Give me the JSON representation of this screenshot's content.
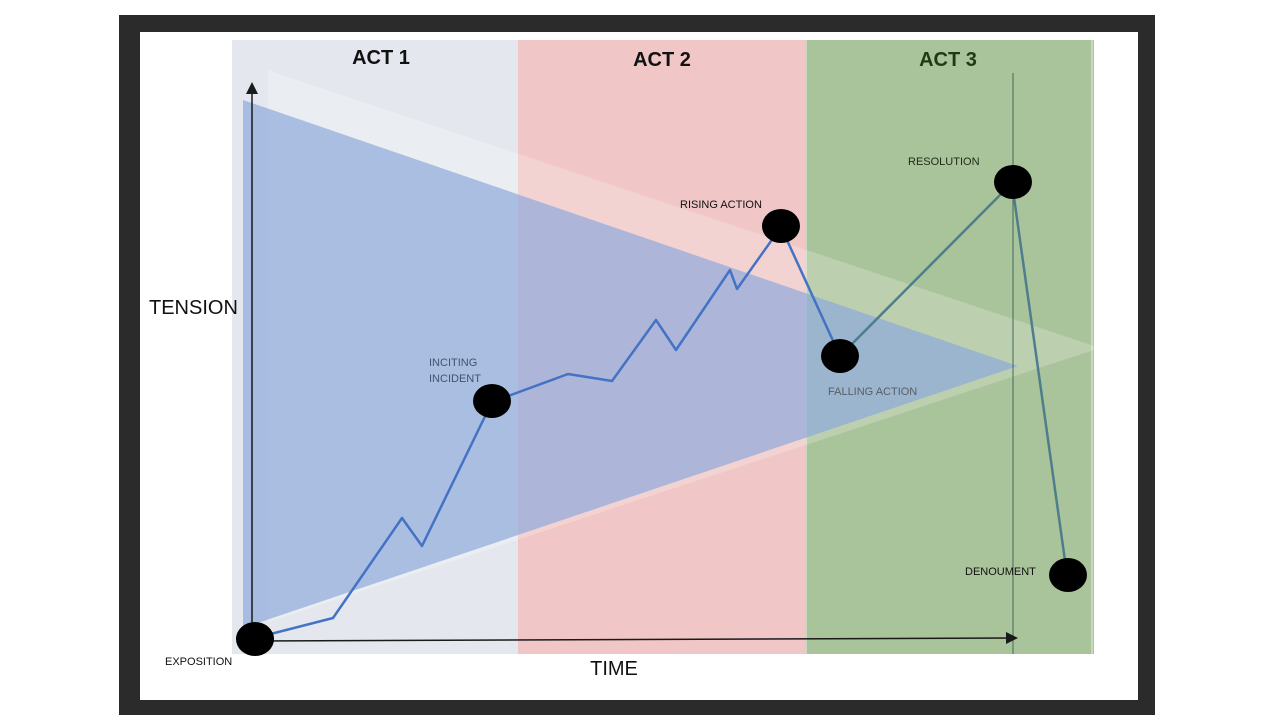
{
  "acts": [
    {
      "label": "ACT 1",
      "color": "#e4e8ee"
    },
    {
      "label": "ACT 2",
      "color": "#f0c6c6"
    },
    {
      "label": "ACT 3",
      "color": "#a9c39a"
    }
  ],
  "axes": {
    "y_label": "TENSION",
    "x_label": "TIME"
  },
  "points": [
    {
      "label": "EXPOSITION"
    },
    {
      "label": "INCITING INCIDENT",
      "lines": [
        "INCITING",
        "INCIDENT"
      ]
    },
    {
      "label": "RISING ACTION"
    },
    {
      "label": "FALLING ACTION"
    },
    {
      "label": "RESOLUTION"
    },
    {
      "label": "DENOUMENT"
    }
  ],
  "colors": {
    "frame": "#2b2b2b",
    "plot_line": "#4472c4",
    "green_line": "#4e7d8c",
    "wedge": "#8faadc",
    "marker": "#000000",
    "act3_title": "#1f3a17"
  }
}
